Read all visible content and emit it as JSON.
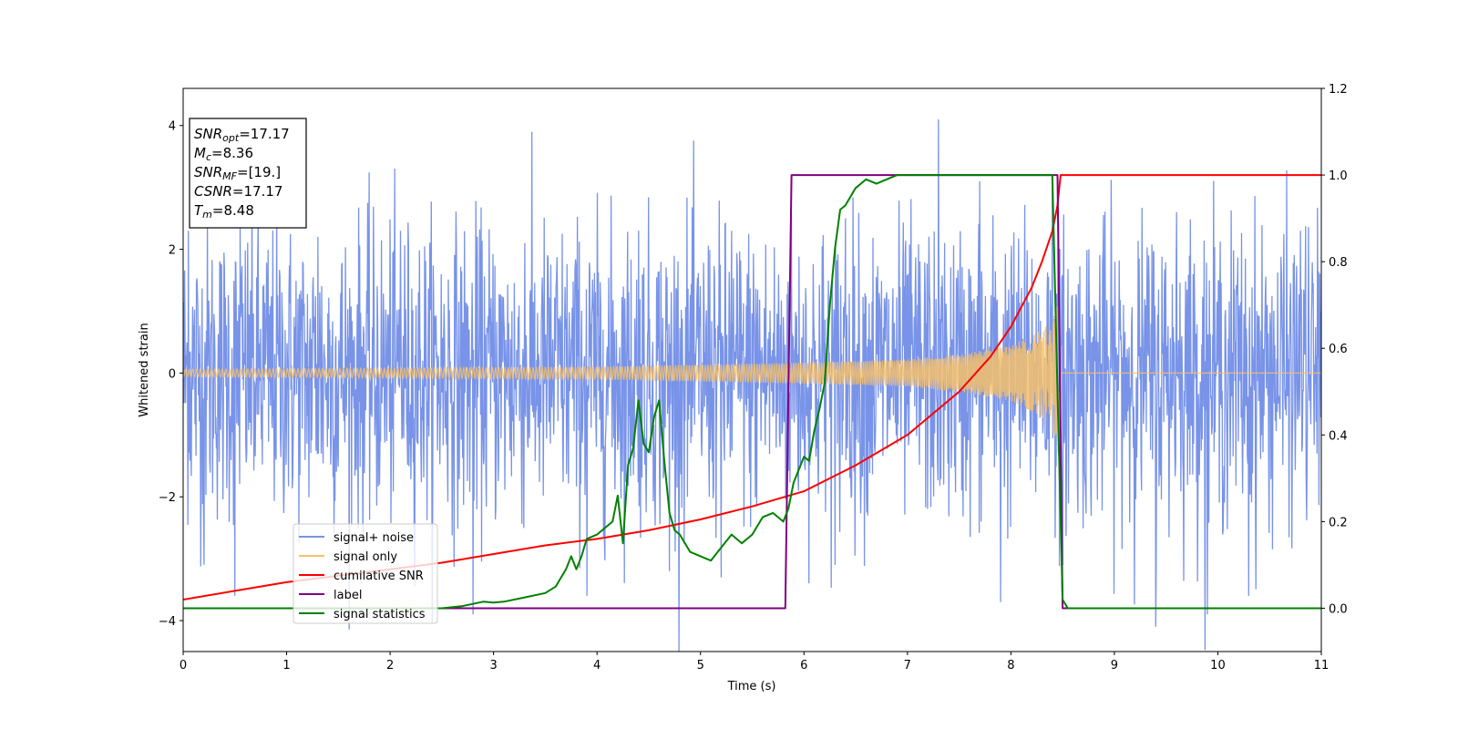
{
  "chart_data": {
    "type": "line",
    "xlabel": "Time (s)",
    "ylabel": "Whitened strain",
    "xlim": [
      0,
      11
    ],
    "ylim": [
      -4.5,
      4.6
    ],
    "y2lim": [
      -0.1,
      1.2
    ],
    "x_ticks": [
      0,
      1,
      2,
      3,
      4,
      5,
      6,
      7,
      8,
      9,
      10,
      11
    ],
    "y_ticks": [
      -4,
      -2,
      0,
      2,
      4
    ],
    "y2_ticks": [
      0.0,
      0.2,
      0.4,
      0.6,
      0.8,
      1.0,
      1.2
    ],
    "legend_position": "lower-left",
    "info_box": {
      "position": "top-left",
      "lines": [
        {
          "name": "SNR",
          "sub": "opt",
          "value": "=17.17"
        },
        {
          "name": "M",
          "sub": "c",
          "value": "=8.36"
        },
        {
          "name": "SNR",
          "sub": "MF",
          "value": "=[19.]"
        },
        {
          "name": "CSNR",
          "sub": "",
          "value": "=17.17"
        },
        {
          "name": "T",
          "sub": "m",
          "value": "=8.48"
        }
      ]
    },
    "series": [
      {
        "name": "signal+ noise",
        "color": "#7893e8",
        "axis": "left",
        "kind": "noise",
        "typical_range": [
          -2.5,
          2.5
        ],
        "peak_points": [
          [
            0.05,
            2.3
          ],
          [
            0.55,
            2.4
          ],
          [
            1.3,
            2.2
          ],
          [
            2.1,
            2.3
          ],
          [
            3.3,
            2.1
          ],
          [
            4.4,
            2.3
          ],
          [
            5.3,
            2.3
          ],
          [
            6.4,
            2.5
          ],
          [
            7.3,
            4.1
          ],
          [
            7.7,
            3.1
          ],
          [
            8.4,
            3.0
          ],
          [
            9.6,
            2.6
          ],
          [
            10.8,
            2.3
          ]
        ],
        "trough_points": [
          [
            0.2,
            -3.1
          ],
          [
            0.5,
            -3.6
          ],
          [
            2.8,
            -3.9
          ],
          [
            3.9,
            -3.6
          ],
          [
            4.7,
            -3.2
          ],
          [
            5.2,
            -3.3
          ],
          [
            6.3,
            -3.1
          ],
          [
            7.9,
            -3.7
          ],
          [
            8.5,
            -3.1
          ],
          [
            9.4,
            -4.1
          ],
          [
            9.9,
            -3.9
          ],
          [
            10.3,
            -3.6
          ]
        ]
      },
      {
        "name": "signal only",
        "color": "#f5bf6c",
        "axis": "left",
        "kind": "chirp",
        "amplitude_envelope": [
          [
            0,
            0.06
          ],
          [
            2,
            0.08
          ],
          [
            4,
            0.1
          ],
          [
            6,
            0.17
          ],
          [
            7,
            0.22
          ],
          [
            7.5,
            0.3
          ],
          [
            8,
            0.45
          ],
          [
            8.3,
            0.7
          ],
          [
            8.45,
            1.1
          ],
          [
            8.48,
            2.5
          ]
        ],
        "merger_time": 8.48
      },
      {
        "name": "cumilative SNR",
        "color": "#ff0000",
        "axis": "right",
        "x": [
          0,
          0.5,
          1,
          1.5,
          2,
          2.5,
          3,
          3.5,
          4,
          4.5,
          5,
          5.5,
          6,
          6.5,
          7,
          7.5,
          7.8,
          8,
          8.2,
          8.3,
          8.4,
          8.45,
          8.48,
          11
        ],
        "values": [
          0.02,
          0.04,
          0.06,
          0.075,
          0.09,
          0.105,
          0.125,
          0.145,
          0.16,
          0.18,
          0.205,
          0.235,
          0.27,
          0.33,
          0.4,
          0.5,
          0.58,
          0.65,
          0.74,
          0.8,
          0.87,
          0.93,
          1.0,
          1.0
        ]
      },
      {
        "name": "label",
        "color": "#800080",
        "axis": "right",
        "x": [
          0,
          5.82,
          5.88,
          8.45,
          8.5,
          11
        ],
        "values": [
          0,
          0,
          1,
          1,
          0,
          0
        ]
      },
      {
        "name": "signal statistics",
        "color": "#008000",
        "axis": "right",
        "x": [
          0,
          2.5,
          2.7,
          2.9,
          3.0,
          3.1,
          3.3,
          3.5,
          3.6,
          3.7,
          3.75,
          3.8,
          3.85,
          3.9,
          4.0,
          4.1,
          4.15,
          4.2,
          4.25,
          4.3,
          4.35,
          4.4,
          4.45,
          4.5,
          4.55,
          4.6,
          4.65,
          4.7,
          4.75,
          4.8,
          4.9,
          5.0,
          5.1,
          5.2,
          5.3,
          5.4,
          5.5,
          5.6,
          5.7,
          5.8,
          5.85,
          5.9,
          6.0,
          6.05,
          6.1,
          6.15,
          6.2,
          6.25,
          6.3,
          6.35,
          6.4,
          6.45,
          6.5,
          6.55,
          6.6,
          6.7,
          6.8,
          6.9,
          7.0,
          7.5,
          8.0,
          8.4,
          8.45,
          8.5,
          8.55,
          11
        ],
        "values": [
          0,
          0,
          0.005,
          0.015,
          0.013,
          0.015,
          0.025,
          0.035,
          0.05,
          0.09,
          0.12,
          0.09,
          0.12,
          0.16,
          0.17,
          0.19,
          0.2,
          0.26,
          0.15,
          0.33,
          0.37,
          0.48,
          0.38,
          0.36,
          0.44,
          0.48,
          0.34,
          0.22,
          0.18,
          0.17,
          0.13,
          0.12,
          0.11,
          0.14,
          0.17,
          0.15,
          0.17,
          0.21,
          0.22,
          0.2,
          0.23,
          0.29,
          0.35,
          0.34,
          0.41,
          0.46,
          0.52,
          0.7,
          0.83,
          0.92,
          0.93,
          0.95,
          0.97,
          0.98,
          0.99,
          0.98,
          0.99,
          1.0,
          1.0,
          1.0,
          1.0,
          1.0,
          0.5,
          0.02,
          0.0,
          0.0
        ]
      }
    ]
  }
}
